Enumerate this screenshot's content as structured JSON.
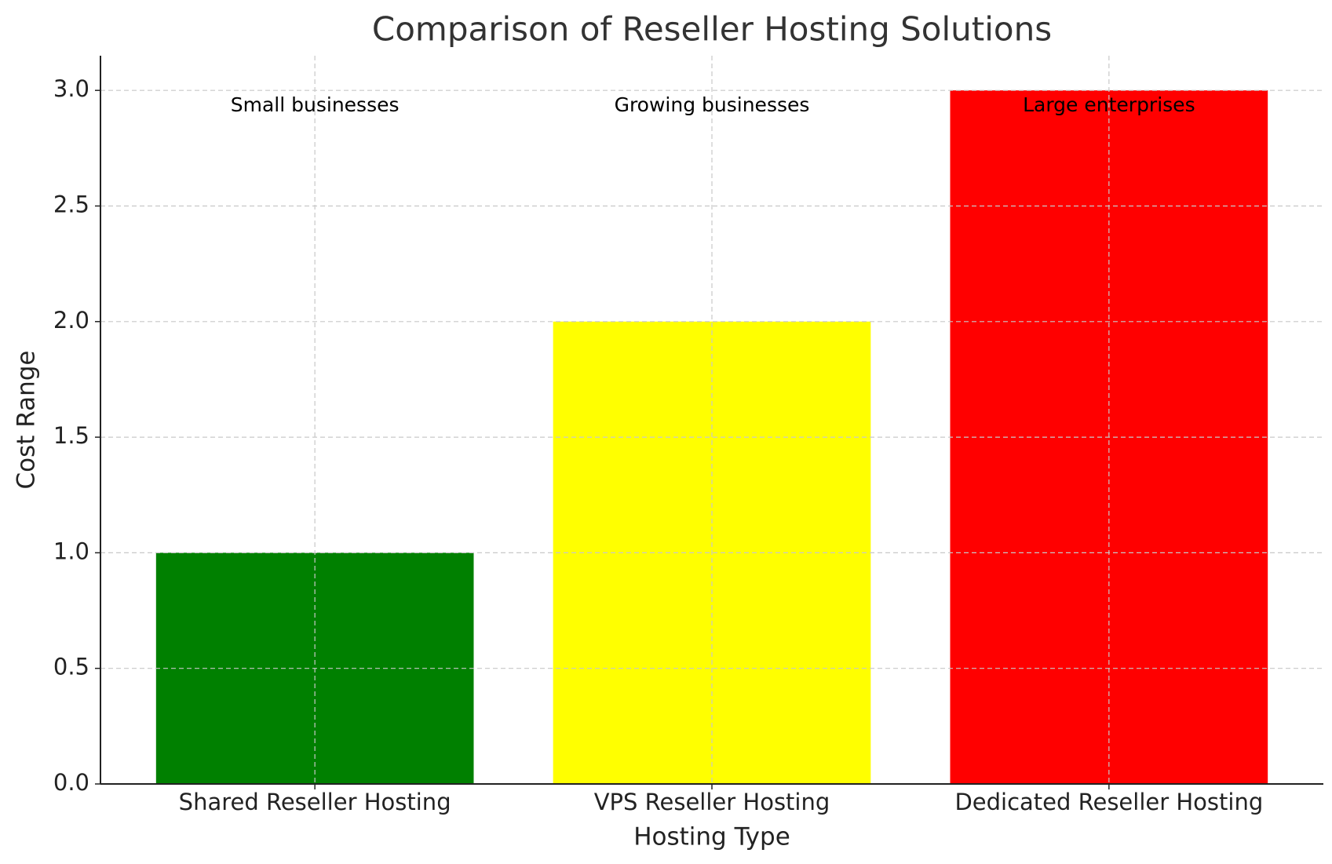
{
  "chart_data": {
    "type": "bar",
    "title": "Comparison of Reseller Hosting Solutions",
    "x_label": "Hosting Type",
    "y_label": "Cost Range",
    "categories": [
      "Shared Reseller Hosting",
      "VPS Reseller Hosting",
      "Dedicated Reseller Hosting"
    ],
    "values": [
      1,
      2,
      3
    ],
    "colors": [
      "#008000",
      "#ffff00",
      "#ff0000"
    ],
    "annotations": [
      "Small businesses",
      "Growing businesses",
      "Large enterprises"
    ],
    "ylim": [
      0,
      3.15
    ],
    "yticks": [
      {
        "value": 0,
        "label": "0.0"
      },
      {
        "value": 0.5,
        "label": "0.5"
      },
      {
        "value": 1,
        "label": "1.0"
      },
      {
        "value": 1.5,
        "label": "1.5"
      },
      {
        "value": 2,
        "label": "2.0"
      },
      {
        "value": 2.5,
        "label": "2.5"
      },
      {
        "value": 3,
        "label": "3.0"
      }
    ],
    "grid": true
  }
}
